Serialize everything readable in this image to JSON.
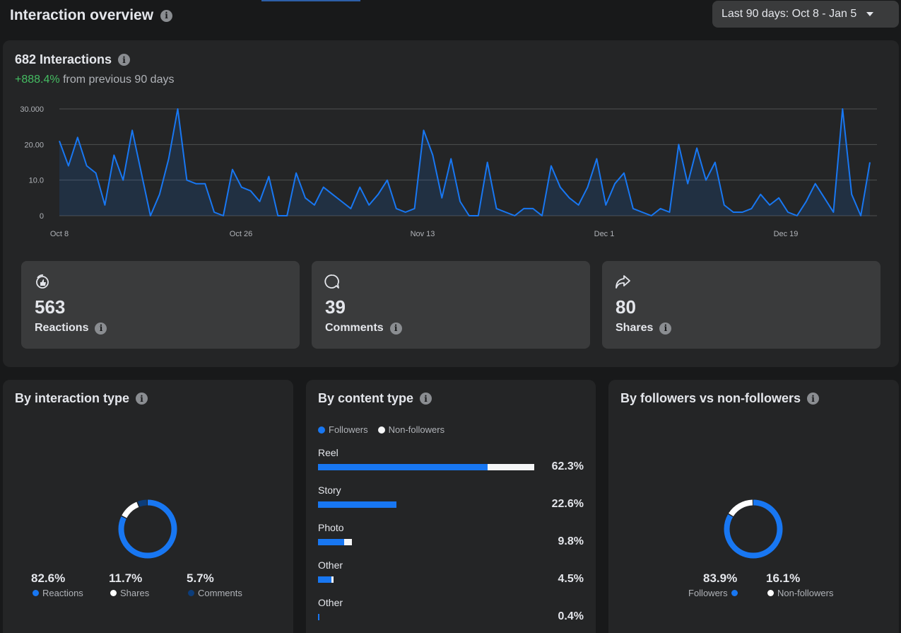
{
  "header": {
    "title": "Interaction overview",
    "date_range": "Last 90 days: Oct 8 - Jan 5"
  },
  "summary": {
    "total": "682 Interactions",
    "change": "+888.4%",
    "change_suffix": "from previous 90 days"
  },
  "chart_data": {
    "type": "area",
    "title": "",
    "xlabel": "",
    "ylabel": "",
    "x_ticks": [
      "Oct 8",
      "Oct 26",
      "Nov 13",
      "Dec 1",
      "Dec 19"
    ],
    "y_ticks": [
      "0",
      "10.0",
      "20.00",
      "30.000"
    ],
    "ylim": [
      0,
      30
    ],
    "grid": true,
    "series": [
      {
        "values": [
          21,
          14,
          22,
          14,
          12,
          3,
          17,
          10,
          24,
          12,
          0,
          6,
          16,
          30,
          10,
          9,
          9,
          1,
          0,
          13,
          8,
          7,
          4,
          11,
          0,
          0,
          12,
          5,
          3,
          8,
          6,
          4,
          2,
          8,
          3,
          6,
          10,
          2,
          1,
          2,
          24,
          17,
          5,
          16,
          4,
          0,
          0,
          15,
          2,
          1,
          0,
          2,
          2,
          0,
          14,
          8,
          5,
          3,
          8,
          16,
          3,
          9,
          12,
          2,
          1,
          0,
          2,
          1,
          20,
          9,
          19,
          10,
          15,
          3,
          1,
          1,
          2,
          6,
          3,
          5,
          1,
          0,
          4,
          9,
          5,
          1,
          31,
          6,
          0,
          15
        ]
      }
    ],
    "color": "#1877f2"
  },
  "stats": [
    {
      "value": "563",
      "label": "Reactions",
      "icon": "reactions-icon"
    },
    {
      "value": "39",
      "label": "Comments",
      "icon": "comment-icon"
    },
    {
      "value": "80",
      "label": "Shares",
      "icon": "share-icon"
    }
  ],
  "by_interaction": {
    "title": "By interaction type",
    "items": [
      {
        "pct": "82.6%",
        "label": "Reactions",
        "value": 82.6,
        "color": "#1877f2"
      },
      {
        "pct": "11.7%",
        "label": "Shares",
        "value": 11.7,
        "color": "#ffffff"
      },
      {
        "pct": "5.7%",
        "label": "Comments",
        "value": 5.7,
        "color": "#0c3d7a"
      }
    ]
  },
  "by_content": {
    "title": "By content type",
    "legend": {
      "followers": "Followers",
      "non_followers": "Non-followers"
    },
    "rows": [
      {
        "name": "Reel",
        "pct": "62.3%",
        "followers": 78.5,
        "non_followers": 21.5,
        "share": 62.3
      },
      {
        "name": "Story",
        "pct": "22.6%",
        "followers": 100,
        "non_followers": 0,
        "share": 22.6
      },
      {
        "name": "Photo",
        "pct": "9.8%",
        "followers": 77,
        "non_followers": 23,
        "share": 9.8
      },
      {
        "name": "Other",
        "pct": "4.5%",
        "followers": 87,
        "non_followers": 13,
        "share": 4.5
      },
      {
        "name": "Other",
        "pct": "0.4%",
        "followers": 100,
        "non_followers": 0,
        "share": 0.4
      }
    ],
    "colors": {
      "followers": "#1877f2",
      "non_followers": "#f5f6f7"
    }
  },
  "by_followers": {
    "title": "By followers vs non-followers",
    "items": [
      {
        "pct": "83.9%",
        "label": "Followers",
        "value": 83.9,
        "color": "#1877f2"
      },
      {
        "pct": "16.1%",
        "label": "Non-followers",
        "value": 16.1,
        "color": "#ffffff"
      }
    ]
  }
}
